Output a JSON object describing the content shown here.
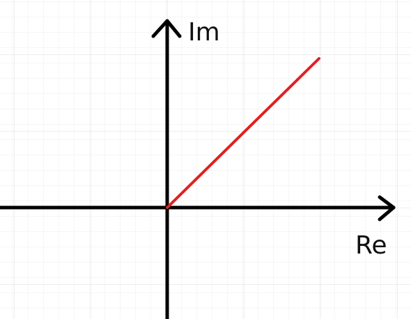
{
  "axes": {
    "y_label": "Im",
    "x_label": "Re"
  }
}
